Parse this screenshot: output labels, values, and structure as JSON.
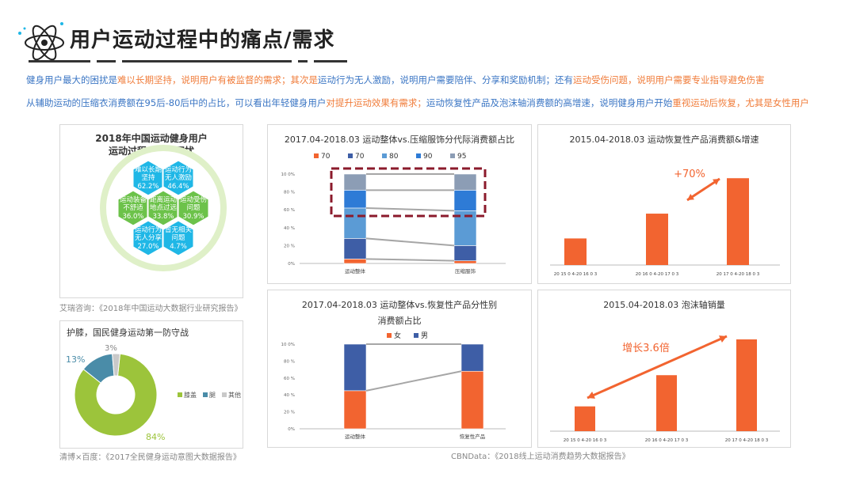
{
  "header": {
    "title": "用户运动过程中的痛点/需求",
    "line1_parts": [
      {
        "text": "健身用户最大的困扰是",
        "c": "blue"
      },
      {
        "text": "难以长期坚持，说明用户有被监督的需求；其次是",
        "c": "orange"
      },
      {
        "text": "运动行为无人激励，说明用户需要陪伴、分享和奖励机制；还有",
        "c": "blue"
      },
      {
        "text": "运动受伤问题，说明用户需要专业指导避免伤害",
        "c": "orange"
      }
    ],
    "line2_parts": [
      {
        "text": "从辅助运动的压缩衣消费额在95后-80后中的占比，可以看出年轻健身用户",
        "c": "blue"
      },
      {
        "text": "对提升运动效果有需求；",
        "c": "orange"
      },
      {
        "text": "运动恢复性产品及泡沫轴消费额的高增速，说明健身用户开始",
        "c": "blue"
      },
      {
        "text": "重视运动后恢复，尤其是女性用户",
        "c": "orange"
      }
    ]
  },
  "sources": {
    "hex": "艾瑞咨询：《2018年中国运动大数据行业研究报告》",
    "donut": "清博×百度：《2017全民健身运动意图大数据报告》",
    "cbn": "CBNData：《2018线上运动消费趋势大数据报告》"
  },
  "chart_data": [
    {
      "type": "table",
      "title_lines": [
        "2018年中国运动健身用户",
        "运动过程中主要困扰"
      ],
      "cells": [
        {
          "label1": "难以长期",
          "label2": "坚持",
          "value": "62.2%",
          "color": "#1fb7e6"
        },
        {
          "label1": "运动行为",
          "label2": "无人激励",
          "value": "46.4%",
          "color": "#1fb7e6"
        },
        {
          "label1": "运动装备",
          "label2": "不舒适",
          "value": "36.0%",
          "color": "#6cc24a"
        },
        {
          "label1": "距离运动",
          "label2": "地点过远",
          "value": "33.8%",
          "color": "#6cc24a"
        },
        {
          "label1": "运动受伤",
          "label2": "问题",
          "value": "30.9%",
          "color": "#6cc24a"
        },
        {
          "label1": "运动行为",
          "label2": "无人分享",
          "value": "27.0%",
          "color": "#1fb7e6"
        },
        {
          "label1": "暂无相关",
          "label2": "问题",
          "value": "4.7%",
          "color": "#1fb7e6"
        }
      ]
    },
    {
      "type": "pie",
      "title": "护膝，国民健身运动第一防守战",
      "slices": [
        {
          "name": "膝盖",
          "value": 84,
          "label": "84%",
          "color": "#9cc43b"
        },
        {
          "name": "腿",
          "value": 13,
          "label": "13%",
          "color": "#4a8ca8"
        },
        {
          "name": "其他",
          "value": 3,
          "label": "3%",
          "color": "#c9c9c9"
        }
      ]
    },
    {
      "type": "bar",
      "title": "2017.04-2018.03 运动整体vs.压缩服饰分代际消费额占比",
      "categories": [
        "运动整体",
        "压缩服饰"
      ],
      "ylim": [
        0,
        100
      ],
      "yticks": [
        "0%",
        "20 %",
        "40 %",
        "60 %",
        "80 %",
        "10 0%"
      ],
      "series": [
        {
          "name": "70",
          "values": [
            5,
            3
          ],
          "color": "#f26430"
        },
        {
          "name": "70",
          "values": [
            23,
            17
          ],
          "color": "#3e5ea6"
        },
        {
          "name": "80",
          "values": [
            34,
            39
          ],
          "color": "#5b9bd5"
        },
        {
          "name": "90",
          "values": [
            20,
            23
          ],
          "color": "#2e7bd6"
        },
        {
          "name": "95",
          "values": [
            18,
            18
          ],
          "color": "#8c9db5"
        }
      ]
    },
    {
      "type": "bar",
      "title": "2015.04-2018.03 运动恢复性产品消费额&增速",
      "categories": [
        "20 15 0 4-20 16 0 3",
        "20 16 0 4-20 17 0 3",
        "20 17 0 4-20 18 0 3"
      ],
      "values": [
        30,
        58,
        98
      ],
      "ylim": [
        0,
        100
      ],
      "annotation": "+70%",
      "color": "#f26430"
    },
    {
      "type": "bar",
      "title_lines": [
        "2017.04-2018.03 运动整体vs.恢复性产品分性别",
        "消费额占比"
      ],
      "categories": [
        "运动整体",
        "恢复性产品"
      ],
      "ylim": [
        0,
        100
      ],
      "yticks": [
        "0%",
        "20 %",
        "40 %",
        "60 %",
        "80 %",
        "10 0%"
      ],
      "series": [
        {
          "name": "女",
          "values": [
            45,
            68
          ],
          "color": "#f26430"
        },
        {
          "name": "男",
          "values": [
            55,
            32
          ],
          "color": "#3e5ea6"
        }
      ]
    },
    {
      "type": "bar",
      "title": "2015.04-2018.03 泡沫轴销量",
      "categories": [
        "20 15 0 4-20 16 0 3",
        "20 16 0 4-20 17 0 3",
        "20 17 0 4-20 18 0 3"
      ],
      "values": [
        27,
        61,
        100
      ],
      "ylim": [
        0,
        100
      ],
      "annotation": "增长3.6倍",
      "color": "#f26430"
    }
  ]
}
